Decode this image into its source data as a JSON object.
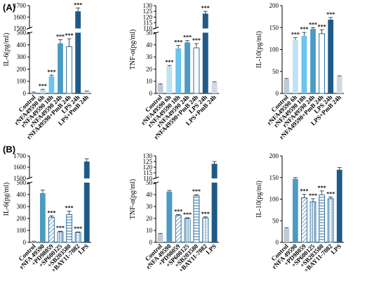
{
  "panel_labels": [
    "(A)",
    "(B)"
  ],
  "colors": {
    "control": "#bdcbd8",
    "light": "#bfe2f5",
    "mid": "#6cc4ee",
    "steel": "#4b9bc4",
    "navy": "#1f5a87",
    "lps_pmb": "#cfd9e3",
    "border": "#2b6f9e"
  },
  "chart_data": [
    {
      "id": "A-IL6",
      "type": "bar",
      "ylabel": "IL-6(pg/ml)",
      "broken_axis": true,
      "ylim_lower": [
        0,
        500
      ],
      "ylim_upper": [
        1500,
        1700
      ],
      "yticks_lower": [
        0,
        100,
        200,
        300,
        400,
        500
      ],
      "yticks_upper": [
        1500,
        1600,
        1700
      ],
      "categories": [
        "Control",
        "rNFA49590 6h",
        "rNFA49590 18h",
        "rNFA49590 24h",
        "rNFA49590+PmB 24h",
        "LPS 24h",
        "LPS+PmB 24h"
      ],
      "values": [
        8,
        28,
        140,
        412,
        385,
        1650,
        15
      ],
      "errors": [
        3,
        6,
        10,
        30,
        65,
        30,
        4
      ],
      "significance": [
        "",
        "***",
        "***",
        "***",
        "***",
        "***",
        ""
      ],
      "styles": [
        "control",
        "light",
        "mid",
        "steel",
        "outline",
        "navy",
        "lps_pmb"
      ]
    },
    {
      "id": "A-TNF",
      "type": "bar",
      "ylabel": "TNF-α(pg/ml)",
      "broken_axis": true,
      "ylim_lower": [
        0,
        50
      ],
      "ylim_upper": [
        110,
        130
      ],
      "yticks_lower": [
        0,
        10,
        20,
        30,
        40,
        50
      ],
      "yticks_upper": [
        110,
        115,
        120,
        125,
        130
      ],
      "categories": [
        "Control",
        "rNFA49590 6h",
        "rNFA49590 18h",
        "rNFA49590 24h",
        "rNFA49590+PmB 24h",
        "LPS 24h",
        "LPS+PmB 24h"
      ],
      "values": [
        7.5,
        22,
        37,
        42,
        37.5,
        123,
        9
      ],
      "errors": [
        0.5,
        1,
        2.5,
        1.5,
        3.5,
        2,
        0.5
      ],
      "significance": [
        "",
        "***",
        "***",
        "***",
        "***",
        "***",
        ""
      ],
      "styles": [
        "control",
        "light",
        "mid",
        "steel",
        "outline",
        "navy",
        "lps_pmb"
      ]
    },
    {
      "id": "A-IL10",
      "type": "bar",
      "ylabel": "IL-10(pg/ml)",
      "broken_axis": false,
      "ylim": [
        0,
        200
      ],
      "yticks": [
        0,
        50,
        100,
        150,
        200
      ],
      "categories": [
        "Control",
        "rNFA49590 6h",
        "rNFA49590 18h",
        "rNFA49590 24h",
        "rNFA49590+PmB 24h",
        "LPS 24h",
        "LPS+PmB 24h"
      ],
      "values": [
        32,
        122,
        131,
        147,
        136,
        168,
        38
      ],
      "errors": [
        2,
        5,
        8,
        3,
        9,
        5,
        2
      ],
      "significance": [
        "",
        "***",
        "***",
        "***",
        "***",
        "***",
        ""
      ],
      "styles": [
        "control",
        "light",
        "mid",
        "steel",
        "outline",
        "navy",
        "lps_pmb"
      ]
    },
    {
      "id": "B-IL6",
      "type": "bar",
      "ylabel": "IL-6(pg/ml)",
      "broken_axis": true,
      "ylim_lower": [
        0,
        500
      ],
      "ylim_upper": [
        1500,
        1700
      ],
      "yticks_lower": [
        0,
        100,
        200,
        300,
        400,
        500
      ],
      "yticks_upper": [
        1500,
        1600,
        1700
      ],
      "categories": [
        "Control",
        "rNFA 49590",
        "+PD98059",
        "+SP600125",
        "+SB203580",
        "+BAY11-7082",
        "LPS"
      ],
      "values": [
        8,
        412,
        210,
        88,
        232,
        83,
        1650
      ],
      "errors": [
        2,
        25,
        12,
        5,
        30,
        4,
        25
      ],
      "significance": [
        "",
        "",
        "***",
        "***",
        "***",
        "***",
        ""
      ],
      "styles": [
        "control",
        "steel",
        "hatch_diag",
        "hatch_vert",
        "hatch_horz",
        "hatch_grid",
        "navy"
      ]
    },
    {
      "id": "B-TNF",
      "type": "bar",
      "ylabel": "TNF-α(pg/ml)",
      "broken_axis": true,
      "ylim_lower": [
        0,
        50
      ],
      "ylim_upper": [
        110,
        130
      ],
      "yticks_lower": [
        0,
        10,
        20,
        30,
        40,
        50
      ],
      "yticks_upper": [
        110,
        115,
        120,
        125,
        130
      ],
      "categories": [
        "Control",
        "rNFA 49590",
        "+PD98059",
        "+SP600125",
        "+SB203580",
        "+BAY11-7082",
        "LPS"
      ],
      "values": [
        7,
        42.5,
        22.5,
        20,
        39,
        20.5,
        123
      ],
      "errors": [
        0.5,
        1,
        0.7,
        0.6,
        1,
        0.8,
        2
      ],
      "significance": [
        "",
        "",
        "***",
        "***",
        "***",
        "***",
        ""
      ],
      "styles": [
        "control",
        "steel",
        "hatch_diag",
        "hatch_vert",
        "hatch_horz",
        "hatch_grid",
        "navy"
      ]
    },
    {
      "id": "B-IL10",
      "type": "bar",
      "ylabel": "IL-10(pg/ml)",
      "broken_axis": false,
      "ylim": [
        0,
        200
      ],
      "yticks": [
        0,
        50,
        100,
        150,
        200
      ],
      "categories": [
        "Control",
        "rNFA 49590",
        "+PD98059",
        "+SP600125",
        "+SB203580",
        "+BAY11-7082",
        "LPS"
      ],
      "values": [
        32,
        147,
        103,
        94,
        110,
        101,
        168
      ],
      "errors": [
        2,
        3,
        8,
        7,
        9,
        4,
        5
      ],
      "significance": [
        "",
        "",
        "***",
        "***",
        "***",
        "***",
        ""
      ],
      "styles": [
        "control",
        "steel",
        "hatch_diag",
        "hatch_vert",
        "hatch_horz",
        "hatch_grid",
        "navy"
      ]
    }
  ]
}
